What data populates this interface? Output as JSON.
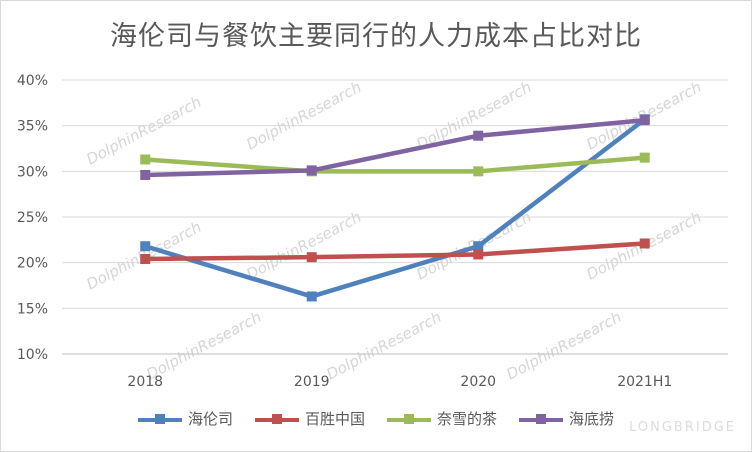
{
  "chart_data": {
    "type": "line",
    "title": "海伦司与餐饮主要同行的人力成本占比对比",
    "categories": [
      "2018",
      "2019",
      "2020",
      "2021H1"
    ],
    "y_ticks": [
      "10%",
      "15%",
      "20%",
      "25%",
      "30%",
      "35%",
      "40%"
    ],
    "ylim": [
      10,
      40
    ],
    "y_unit": "%",
    "grid": "horizontal",
    "legend_position": "bottom",
    "series": [
      {
        "name": "海伦司",
        "color": "#4f81bd",
        "values": [
          21.8,
          16.3,
          21.8,
          35.7
        ]
      },
      {
        "name": "百胜中国",
        "color": "#c0504d",
        "values": [
          20.4,
          20.6,
          20.9,
          22.1
        ]
      },
      {
        "name": "奈雪的茶",
        "color": "#9bbb59",
        "values": [
          31.3,
          30.0,
          30.0,
          31.5
        ]
      },
      {
        "name": "海底捞",
        "color": "#8064a2",
        "values": [
          29.6,
          30.1,
          33.9,
          35.6
        ]
      }
    ]
  },
  "watermark": {
    "text": "DolphinResearch",
    "brand": "LONGBRIDGE"
  }
}
